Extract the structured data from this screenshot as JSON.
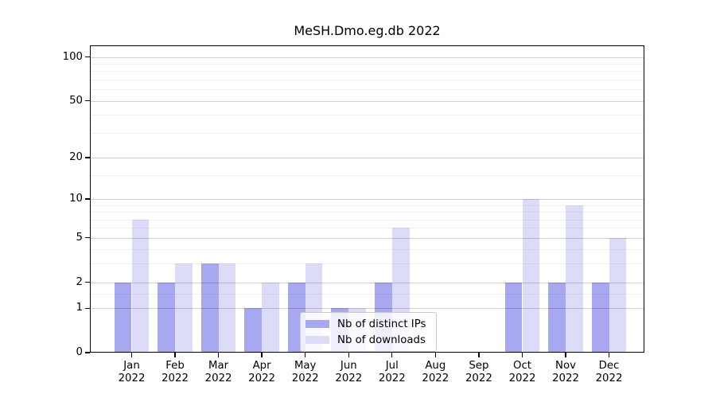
{
  "chart_data": {
    "type": "bar",
    "title": "MeSH.Dmo.eg.db 2022",
    "categories": [
      "Jan",
      "Feb",
      "Mar",
      "Apr",
      "May",
      "Jun",
      "Jul",
      "Aug",
      "Sep",
      "Oct",
      "Nov",
      "Dec"
    ],
    "year_label": "2022",
    "series": [
      {
        "name": "Nb of distinct IPs",
        "color": "#a8a8f1",
        "values": [
          2,
          2,
          3,
          1,
          2,
          1,
          2,
          0,
          0,
          2,
          2,
          2
        ]
      },
      {
        "name": "Nb of downloads",
        "color": "#dcdcf9",
        "values": [
          7,
          3,
          3,
          2,
          3,
          1,
          6,
          0,
          0,
          10,
          9,
          5
        ]
      }
    ],
    "y_axis": {
      "scale": "log1p",
      "major_ticks": [
        0,
        1,
        2,
        5,
        10,
        20,
        50,
        100
      ],
      "minor_gridlines": [
        1.5,
        3,
        4,
        6,
        7,
        8,
        9,
        15,
        30,
        40,
        60,
        70,
        80,
        90
      ],
      "ylim": [
        0,
        120
      ]
    },
    "xlabel": "",
    "ylabel": "",
    "legend_position": "inside lower-center",
    "grid": "horizontal major+minor"
  },
  "colors": {
    "background": "#ffffff",
    "spine": "#000000",
    "text": "#000000",
    "major_grid": "rgba(0,0,0,0.18)",
    "minor_grid": "rgba(0,0,0,0.06)",
    "legend_border": "#c9c9c9",
    "legend_bg": "rgba(255,255,255,0.8)"
  }
}
